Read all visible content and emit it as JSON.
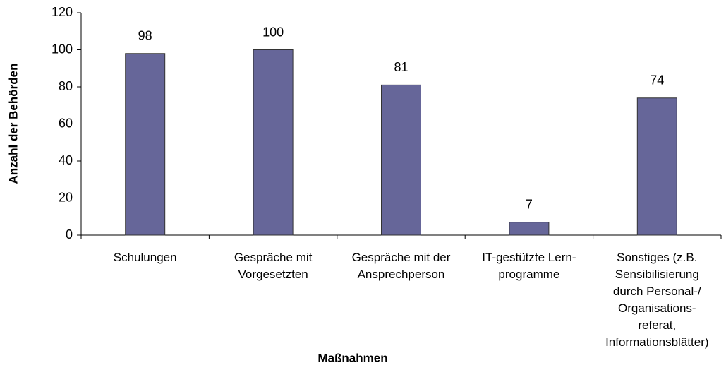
{
  "chart_data": {
    "type": "bar",
    "x_label": "Maßnahmen",
    "y_label": "Anzahl der Behörden",
    "categories": [
      "Schulungen",
      "Gespräche mit\nVorgesetzten",
      "Gespräche mit der\nAnsprechperson",
      "IT-gestützte Lern-\nprogramme",
      "Sonstiges (z.B.\nSensibilisierung\ndurch Personal-/\nOrganisations-\nreferat,\nInformationsblätter)"
    ],
    "values": [
      98,
      100,
      81,
      7,
      74
    ],
    "color": "#666699",
    "ylim": [
      0,
      120
    ],
    "yticks": [
      0,
      20,
      40,
      60,
      80,
      100,
      120
    ],
    "grid": false
  }
}
